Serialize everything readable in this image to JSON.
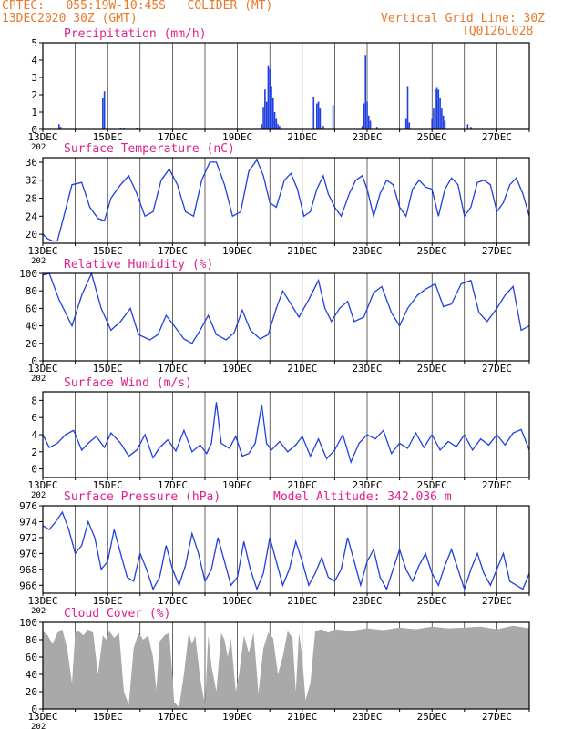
{
  "header": {
    "line1": "CPTEC:   055:19W-10:45S   COLIDER (MT)",
    "line2": "13DEC2020 30Z (GMT)",
    "grid_note": "Vertical Grid Line: 30Z",
    "code": "TQ0126L028",
    "color": "#e8792a"
  },
  "colors": {
    "title": "#e0208c",
    "line": "#1f3fe0",
    "cloud": "#a9a9a9",
    "frame": "#000000"
  },
  "x_ticks": [
    "13DEC",
    "15DEC",
    "17DEC",
    "19DEC",
    "21DEC",
    "23DEC",
    "25DEC",
    "27DEC"
  ],
  "x_year_fragment": "202",
  "model_altitude": "Model Altitude: 342.036 m",
  "chart_data": [
    {
      "type": "bar",
      "title": "Precipitation (mm/h)",
      "ylim": [
        0,
        5
      ],
      "yticks": [
        0,
        1,
        2,
        3,
        4,
        5
      ],
      "xlim": [
        0,
        15
      ],
      "x": [
        0.5,
        0.55,
        1.85,
        1.9,
        2.4,
        2.5,
        2.9,
        6.75,
        6.8,
        6.85,
        6.9,
        6.95,
        7.0,
        7.05,
        7.1,
        7.15,
        7.2,
        7.25,
        7.3,
        8.35,
        8.45,
        8.5,
        8.55,
        8.65,
        8.95,
        9.85,
        9.9,
        9.95,
        10.0,
        10.05,
        10.1,
        10.3,
        11.2,
        11.25,
        11.3,
        12.0,
        12.05,
        12.1,
        12.15,
        12.2,
        12.25,
        12.3,
        12.35,
        12.4,
        13.1,
        13.2
      ],
      "values": [
        0.3,
        0.15,
        1.8,
        2.2,
        0.1,
        0.05,
        0.08,
        0.3,
        1.3,
        2.3,
        1.6,
        3.7,
        3.5,
        2.5,
        1.8,
        1.0,
        0.6,
        0.3,
        0.2,
        1.9,
        1.5,
        1.6,
        1.2,
        0.2,
        1.4,
        0.2,
        1.5,
        4.3,
        1.6,
        0.8,
        0.5,
        0.15,
        0.6,
        2.5,
        0.4,
        0.6,
        1.2,
        2.3,
        2.4,
        2.3,
        1.8,
        1.2,
        0.8,
        0.5,
        0.3,
        0.15
      ]
    },
    {
      "type": "line",
      "title": "Surface Temperature (nC)",
      "ylim": [
        18,
        37
      ],
      "yticks": [
        20,
        24,
        28,
        32,
        36
      ],
      "xlim": [
        0,
        15
      ],
      "x": [
        0,
        0.15,
        0.3,
        0.45,
        0.65,
        0.9,
        1.2,
        1.45,
        1.7,
        1.9,
        2.1,
        2.4,
        2.65,
        2.9,
        3.15,
        3.4,
        3.65,
        3.9,
        4.15,
        4.4,
        4.65,
        4.9,
        5.15,
        5.35,
        5.6,
        5.85,
        6.1,
        6.35,
        6.6,
        6.8,
        7.0,
        7.2,
        7.45,
        7.65,
        7.85,
        8.05,
        8.25,
        8.45,
        8.65,
        8.8,
        9.0,
        9.2,
        9.45,
        9.65,
        9.85,
        10.0,
        10.2,
        10.4,
        10.6,
        10.8,
        11.0,
        11.2,
        11.4,
        11.6,
        11.8,
        12.0,
        12.2,
        12.4,
        12.6,
        12.8,
        13.0,
        13.2,
        13.4,
        13.6,
        13.8,
        14.0,
        14.2,
        14.4,
        14.6,
        14.8,
        15.0
      ],
      "values": [
        20,
        19,
        18.5,
        18.5,
        24,
        31,
        31.5,
        26,
        23.5,
        23,
        28,
        31,
        33,
        29,
        24,
        25,
        32,
        34.5,
        31,
        25,
        24,
        32,
        36,
        36,
        31,
        24,
        25,
        34,
        36.5,
        33,
        27,
        26,
        32,
        33.5,
        30,
        24,
        25,
        30,
        33,
        29,
        26,
        24,
        29,
        32,
        33,
        30,
        24,
        29,
        32,
        31,
        26,
        24,
        30,
        32,
        30.5,
        30,
        24,
        30,
        32.5,
        31,
        24,
        26,
        31.5,
        32,
        31,
        25,
        27,
        31,
        32.5,
        29,
        24
      ]
    },
    {
      "type": "line",
      "title": "Relative Humidity (%)",
      "ylim": [
        0,
        100
      ],
      "yticks": [
        0,
        20,
        40,
        60,
        80,
        100
      ],
      "xlim": [
        0,
        15
      ],
      "x": [
        0,
        0.2,
        0.5,
        0.9,
        1.2,
        1.5,
        1.8,
        2.1,
        2.4,
        2.7,
        2.95,
        3.3,
        3.55,
        3.8,
        4.05,
        4.35,
        4.6,
        4.85,
        5.1,
        5.35,
        5.65,
        5.9,
        6.15,
        6.4,
        6.7,
        6.95,
        7.2,
        7.4,
        7.7,
        7.9,
        8.2,
        8.5,
        8.7,
        8.9,
        9.15,
        9.4,
        9.6,
        9.9,
        10.2,
        10.45,
        10.75,
        11.0,
        11.25,
        11.55,
        11.8,
        12.1,
        12.35,
        12.6,
        12.9,
        13.2,
        13.45,
        13.7,
        14.0,
        14.25,
        14.5,
        14.75,
        15.0
      ],
      "values": [
        98,
        100,
        70,
        40,
        75,
        100,
        60,
        35,
        45,
        60,
        30,
        24,
        30,
        52,
        40,
        25,
        20,
        35,
        52,
        30,
        24,
        32,
        58,
        35,
        25,
        30,
        60,
        80,
        62,
        50,
        70,
        92,
        60,
        45,
        60,
        68,
        45,
        50,
        78,
        85,
        55,
        40,
        60,
        75,
        82,
        88,
        62,
        65,
        88,
        92,
        55,
        45,
        60,
        75,
        85,
        35,
        40
      ]
    },
    {
      "type": "line",
      "title": "Surface Wind (m/s)",
      "ylim": [
        -1,
        9
      ],
      "yticks": [
        0,
        2,
        4,
        6,
        8
      ],
      "xlim": [
        0,
        15
      ],
      "x": [
        0,
        0.2,
        0.45,
        0.7,
        0.95,
        1.2,
        1.4,
        1.65,
        1.9,
        2.1,
        2.4,
        2.65,
        2.9,
        3.15,
        3.4,
        3.6,
        3.85,
        4.1,
        4.35,
        4.6,
        4.85,
        5.05,
        5.2,
        5.35,
        5.5,
        5.75,
        5.95,
        6.15,
        6.35,
        6.55,
        6.75,
        6.9,
        7.05,
        7.3,
        7.55,
        7.8,
        8.0,
        8.25,
        8.5,
        8.75,
        9.0,
        9.25,
        9.5,
        9.75,
        10.0,
        10.25,
        10.5,
        10.75,
        11.0,
        11.25,
        11.5,
        11.75,
        12.0,
        12.25,
        12.5,
        12.75,
        13.0,
        13.25,
        13.5,
        13.75,
        14.0,
        14.25,
        14.5,
        14.75,
        15.0
      ],
      "values": [
        4,
        2.5,
        3,
        4,
        4.5,
        2.2,
        3,
        3.8,
        2.5,
        4.2,
        3,
        1.5,
        2.2,
        4,
        1.3,
        2.5,
        3.4,
        2.1,
        4.5,
        2,
        2.8,
        1.8,
        3,
        7.8,
        3,
        2.4,
        3.8,
        1.5,
        1.8,
        3,
        7.5,
        3,
        2.2,
        3.2,
        2,
        2.8,
        3.8,
        1.5,
        3.5,
        1.2,
        2.2,
        4,
        0.8,
        3,
        4,
        3.5,
        4.5,
        1.8,
        3,
        2.4,
        4.2,
        2.5,
        4,
        2.2,
        3.2,
        2.6,
        4,
        2.2,
        3.5,
        2.8,
        4,
        2.8,
        4.2,
        4.6,
        2.2
      ]
    },
    {
      "type": "line",
      "title": "Surface Pressure (hPa)",
      "ylim": [
        965,
        976
      ],
      "yticks": [
        966,
        968,
        970,
        972,
        974,
        976
      ],
      "xlim": [
        0,
        15
      ],
      "x": [
        0,
        0.2,
        0.4,
        0.6,
        0.8,
        1.0,
        1.2,
        1.4,
        1.6,
        1.8,
        2.0,
        2.2,
        2.4,
        2.6,
        2.8,
        3.0,
        3.2,
        3.4,
        3.6,
        3.8,
        4.0,
        4.2,
        4.4,
        4.6,
        4.8,
        5.0,
        5.2,
        5.4,
        5.6,
        5.8,
        6.0,
        6.2,
        6.4,
        6.6,
        6.8,
        7.0,
        7.2,
        7.4,
        7.6,
        7.8,
        8.0,
        8.2,
        8.4,
        8.6,
        8.8,
        9.0,
        9.2,
        9.4,
        9.6,
        9.8,
        10.0,
        10.2,
        10.4,
        10.6,
        10.8,
        11.0,
        11.2,
        11.4,
        11.6,
        11.8,
        12.0,
        12.2,
        12.4,
        12.6,
        12.8,
        13.0,
        13.2,
        13.4,
        13.6,
        13.8,
        14.0,
        14.2,
        14.4,
        14.6,
        14.8,
        15.0
      ],
      "values": [
        973.5,
        973,
        974,
        975.2,
        973,
        970,
        971,
        974,
        972,
        968,
        969,
        973,
        970,
        967,
        966.5,
        970,
        968,
        965.5,
        967,
        971,
        968,
        966,
        968.5,
        972.5,
        970,
        966.5,
        968,
        972,
        969,
        966,
        967,
        971.5,
        968,
        965.5,
        967.5,
        972,
        969,
        966,
        968,
        971.5,
        969,
        966,
        967.5,
        969.5,
        967,
        966.5,
        968,
        972,
        969,
        966,
        969,
        970.5,
        967,
        965.5,
        968,
        970.5,
        968,
        966.5,
        968.5,
        970,
        967.5,
        966,
        968.5,
        970.5,
        968,
        965.5,
        968,
        970,
        967.5,
        966,
        968,
        970,
        966.5,
        966,
        965.5,
        967.5
      ]
    },
    {
      "type": "area",
      "title": "Cloud Cover (%)",
      "ylim": [
        0,
        100
      ],
      "yticks": [
        0,
        20,
        40,
        60,
        80,
        100
      ],
      "xlim": [
        0,
        15
      ],
      "x": [
        0,
        0.15,
        0.3,
        0.45,
        0.6,
        0.75,
        0.9,
        1.0,
        1.1,
        1.25,
        1.4,
        1.55,
        1.7,
        1.85,
        1.95,
        2.05,
        2.2,
        2.35,
        2.5,
        2.65,
        2.8,
        2.95,
        3.1,
        3.25,
        3.4,
        3.5,
        3.6,
        3.75,
        3.9,
        4.05,
        4.2,
        4.35,
        4.5,
        4.6,
        4.7,
        4.85,
        5.0,
        5.1,
        5.2,
        5.35,
        5.5,
        5.6,
        5.7,
        5.8,
        5.95,
        6.05,
        6.2,
        6.35,
        6.5,
        6.65,
        6.8,
        6.95,
        7.1,
        7.25,
        7.4,
        7.55,
        7.7,
        7.8,
        7.9,
        8.0,
        8.1,
        8.25,
        8.4,
        8.6,
        8.8,
        9.0,
        9.5,
        10.0,
        10.5,
        11.0,
        11.5,
        12.0,
        12.5,
        13.0,
        13.5,
        14.0,
        14.5,
        15.0
      ],
      "values": [
        90,
        85,
        75,
        88,
        92,
        70,
        30,
        88,
        90,
        85,
        92,
        88,
        40,
        85,
        80,
        90,
        82,
        88,
        20,
        5,
        70,
        88,
        80,
        85,
        60,
        22,
        78,
        85,
        88,
        8,
        2,
        40,
        88,
        75,
        85,
        35,
        5,
        85,
        50,
        20,
        88,
        80,
        60,
        82,
        20,
        40,
        85,
        65,
        88,
        18,
        70,
        88,
        82,
        40,
        60,
        90,
        82,
        20,
        88,
        60,
        10,
        30,
        90,
        92,
        88,
        92,
        90,
        93,
        91,
        94,
        92,
        95,
        93,
        94,
        95,
        92,
        96,
        93
      ]
    }
  ]
}
